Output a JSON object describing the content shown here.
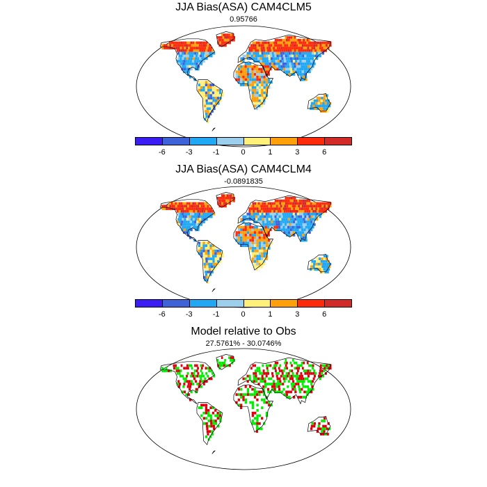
{
  "panels": [
    {
      "title": "JJA Bias(ASA) CAM4CLM5",
      "subtitle": "0.95766",
      "palette": "bias",
      "seed": 11
    },
    {
      "title": "JJA Bias(ASA) CAM4CLM4",
      "subtitle": "-0.0891835",
      "palette": "bias",
      "seed": 29
    },
    {
      "title": "Model relative to Obs",
      "subtitle": "27.5761% - 30.0746%",
      "palette": "relative",
      "seed": 47
    }
  ],
  "colorbar": {
    "colors": [
      "#3b1cf5",
      "#3e63d9",
      "#21a8f5",
      "#9ccfec",
      "#fff07a",
      "#ff9f0a",
      "#ff2a0a",
      "#d22a28"
    ],
    "labels": [
      "-6",
      "-3",
      "-1",
      "0",
      "1",
      "3",
      "6"
    ]
  },
  "relative_colors": [
    "#e0000d",
    "#00ee00"
  ]
}
